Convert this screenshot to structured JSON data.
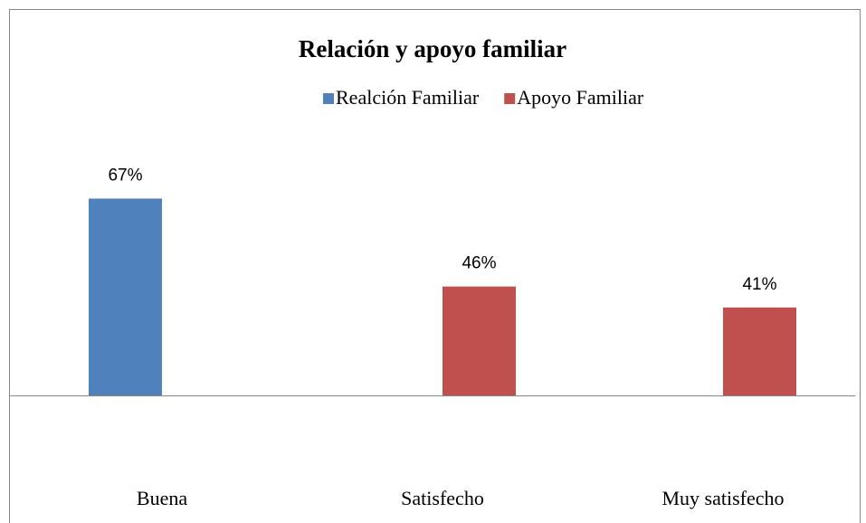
{
  "chart_data": {
    "type": "bar",
    "title": "Relación y apoyo familiar",
    "categories": [
      "Buena",
      "Satisfecho",
      "Muy satisfecho"
    ],
    "series": [
      {
        "name": "Realción Familiar",
        "color": "#4f81bd",
        "values": [
          67,
          null,
          null
        ],
        "value_labels": [
          "67%",
          null,
          null
        ]
      },
      {
        "name": "Apoyo Familiar",
        "color": "#c0504d",
        "values": [
          null,
          46,
          41
        ],
        "value_labels": [
          null,
          "46%",
          "41%"
        ]
      }
    ],
    "ylim": [
      20,
      90
    ],
    "legend": "top"
  }
}
